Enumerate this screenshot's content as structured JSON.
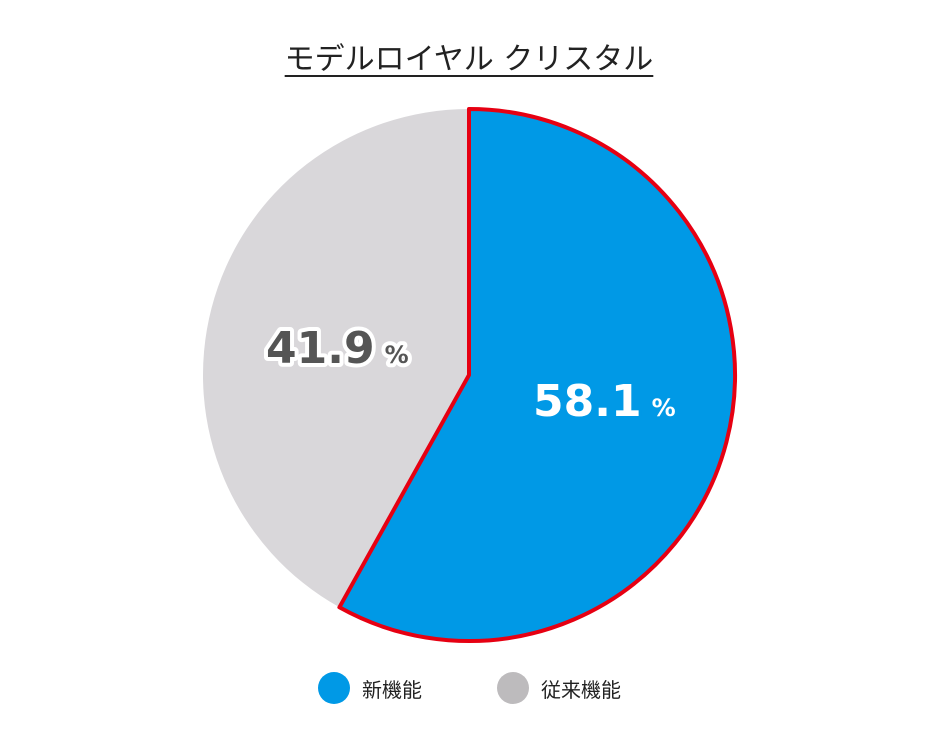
{
  "chart_data": {
    "type": "pie",
    "title": "モデルロイヤル クリスタル",
    "slices": [
      {
        "label": "新機能",
        "value": 58.1,
        "value_text": "58.1",
        "unit": "%",
        "color": "#0099e6",
        "highlight": true
      },
      {
        "label": "従来機能",
        "value": 41.9,
        "value_text": "41.9",
        "unit": "%",
        "color": "#d9d7da",
        "highlight": false
      }
    ],
    "highlight_color": "#e60012",
    "legend": {
      "position": "bottom",
      "items": [
        {
          "label": "新機能",
          "color": "#0099e6"
        },
        {
          "label": "従来機能",
          "color": "#bdbbbd"
        }
      ]
    }
  }
}
